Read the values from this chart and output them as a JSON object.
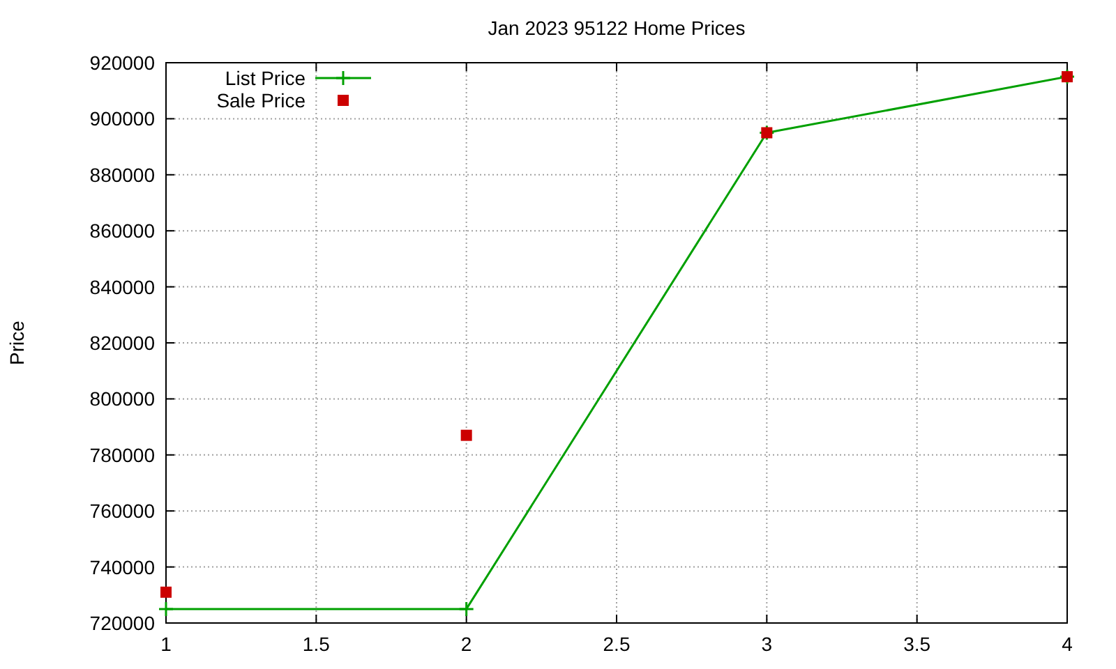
{
  "chart_data": {
    "type": "line",
    "title": "Jan 2023 95122 Home Prices",
    "ylabel": "Price",
    "x": [
      1,
      2,
      3,
      4
    ],
    "series": [
      {
        "name": "List Price",
        "color": "#00a000",
        "marker": "cross",
        "values": [
          725000,
          725000,
          895000,
          915000
        ]
      },
      {
        "name": "Sale Price",
        "type": "scatter",
        "color": "#cc0000",
        "marker": "square",
        "values": [
          731000,
          787000,
          895000,
          915000
        ]
      }
    ],
    "xlim": [
      1,
      4
    ],
    "xticks": [
      1,
      1.5,
      2,
      2.5,
      3,
      3.5,
      4
    ],
    "ylim": [
      720000,
      920000
    ],
    "yticks": [
      720000,
      740000,
      760000,
      780000,
      800000,
      820000,
      840000,
      860000,
      880000,
      900000,
      920000
    ],
    "grid": true,
    "legend": "top left"
  }
}
